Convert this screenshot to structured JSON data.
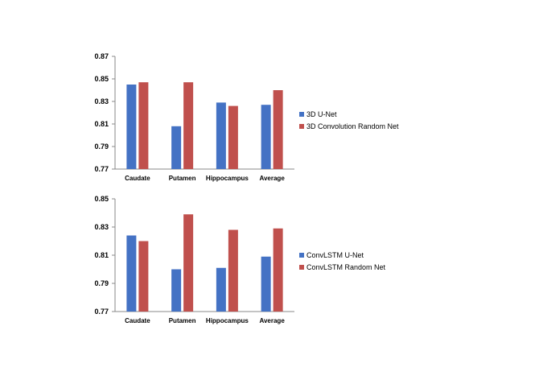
{
  "colors": {
    "series_1": "#4472C4",
    "series_2": "#C0504D",
    "axis": "#888888",
    "grid": "#d9d9d9"
  },
  "chart_data": [
    {
      "type": "bar",
      "categories": [
        "Caudate",
        "Putamen",
        "Hippocampus",
        "Average"
      ],
      "series": [
        {
          "name": "3D U-Net",
          "values": [
            0.845,
            0.808,
            0.829,
            0.827
          ]
        },
        {
          "name": "3D Convolution Random Net",
          "values": [
            0.847,
            0.847,
            0.826,
            0.84
          ]
        }
      ],
      "yticks": [
        "0.87",
        "0.85",
        "0.83",
        "0.81",
        "0.79",
        "0.77"
      ],
      "ylim": [
        0.77,
        0.87
      ],
      "legend": "right",
      "grid": false
    },
    {
      "type": "bar",
      "categories": [
        "Caudate",
        "Putamen",
        "Hippocampus",
        "Average"
      ],
      "series": [
        {
          "name": "ConvLSTM U-Net",
          "values": [
            0.824,
            0.8,
            0.801,
            0.809
          ]
        },
        {
          "name": "ConvLSTM Random Net",
          "values": [
            0.82,
            0.839,
            0.828,
            0.829
          ]
        }
      ],
      "yticks": [
        "0.85",
        "0.83",
        "0.81",
        "0.79",
        "0.77"
      ],
      "ylim": [
        0.77,
        0.85
      ],
      "legend": "right",
      "grid": false
    }
  ]
}
